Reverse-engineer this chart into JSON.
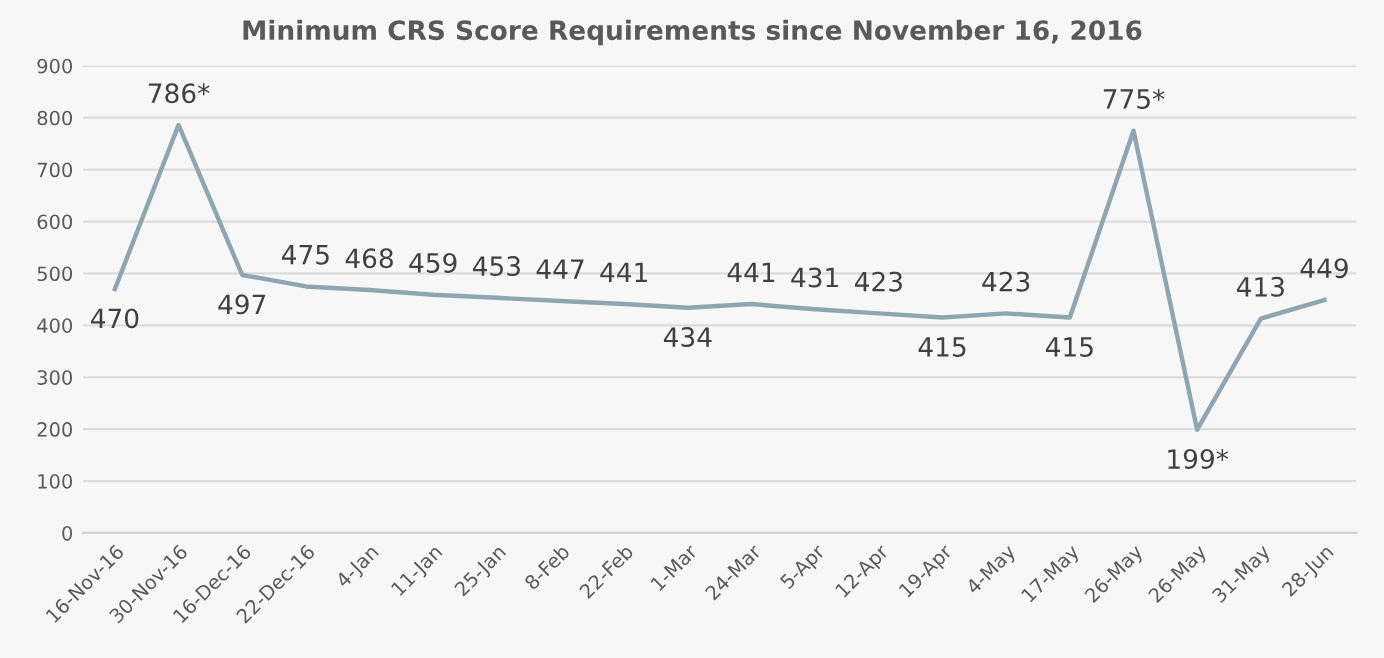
{
  "chart_data": {
    "type": "line",
    "title": "Minimum CRS Score Requirements since November 16, 2016",
    "categories": [
      "16-Nov-16",
      "30-Nov-16",
      "16-Dec-16",
      "22-Dec-16",
      "4-Jan",
      "11-Jan",
      "25-Jan",
      "8-Feb",
      "22-Feb",
      "1-Mar",
      "24-Mar",
      "5-Apr",
      "12-Apr",
      "19-Apr",
      "4-May",
      "17-May",
      "26-May",
      "26-May",
      "31-May",
      "28-Jun"
    ],
    "series": [
      {
        "color": "#8fa6b2",
        "values": [
          470,
          786,
          497,
          475,
          468,
          459,
          453,
          447,
          441,
          434,
          441,
          431,
          423,
          415,
          423,
          415,
          775,
          199,
          413,
          449
        ],
        "value_labels": [
          "470",
          "786*",
          "497",
          "475",
          "468",
          "459",
          "453",
          "447",
          "441",
          "434",
          "441",
          "431",
          "423",
          "415",
          "423",
          "415",
          "775*",
          "199*",
          "413",
          "449"
        ]
      }
    ],
    "ylim": [
      0,
      900
    ],
    "yticks": [
      0,
      100,
      200,
      300,
      400,
      500,
      600,
      700,
      800,
      900
    ],
    "grid": "y",
    "legend": false,
    "marker": "none",
    "line_style": "solid"
  }
}
